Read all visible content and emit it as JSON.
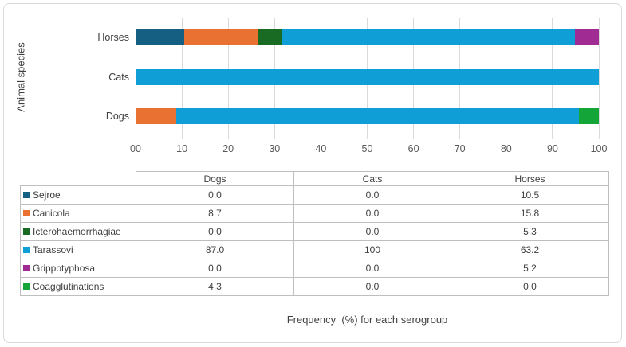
{
  "chart_data": {
    "type": "bar",
    "stacked": true,
    "orientation": "horizontal",
    "title": "",
    "xlabel": "Frequency  (%) for each serogroup",
    "ylabel": "Animal species",
    "xlim": [
      0,
      100
    ],
    "grid": true,
    "legend_position": "table-below",
    "categories": [
      "Dogs",
      "Cats",
      "Horses"
    ],
    "bar_categories_top_to_bottom": [
      "Horses",
      "Cats",
      "Dogs"
    ],
    "xticks": [
      "00",
      "10",
      "20",
      "30",
      "40",
      "50",
      "60",
      "70",
      "80",
      "90",
      "100"
    ],
    "series": [
      {
        "name": "Sejroe",
        "color": "#156082",
        "values": [
          0.0,
          0.0,
          10.5
        ]
      },
      {
        "name": "Canicola",
        "color": "#E97132",
        "values": [
          8.7,
          0.0,
          15.8
        ]
      },
      {
        "name": "Icterohaemorrhagiae",
        "color": "#196B24",
        "values": [
          0.0,
          0.0,
          5.3
        ]
      },
      {
        "name": "Tarassovi",
        "color": "#0F9ED5",
        "values": [
          87.0,
          100,
          63.2
        ]
      },
      {
        "name": "Grippotyphosa",
        "color": "#A02B93",
        "values": [
          0.0,
          0.0,
          5.2
        ]
      },
      {
        "name": "Coagglutinations",
        "color": "#13A538",
        "values": [
          4.3,
          0.0,
          0.0
        ]
      }
    ]
  },
  "table": {
    "columns": [
      "Dogs",
      "Cats",
      "Horses"
    ],
    "rows": [
      {
        "label": "Sejroe",
        "color": "#156082",
        "values": [
          "0.0",
          "0.0",
          "10.5"
        ]
      },
      {
        "label": "Canicola",
        "color": "#E97132",
        "values": [
          "8.7",
          "0.0",
          "15.8"
        ]
      },
      {
        "label": "Icterohaemorrhagiae",
        "color": "#196B24",
        "values": [
          "0.0",
          "0.0",
          "5.3"
        ]
      },
      {
        "label": "Tarassovi",
        "color": "#0F9ED5",
        "values": [
          "87.0",
          "100",
          "63.2"
        ]
      },
      {
        "label": "Grippotyphosa",
        "color": "#A02B93",
        "values": [
          "0.0",
          "0.0",
          "5.2"
        ]
      },
      {
        "label": "Coagglutinations",
        "color": "#13A538",
        "values": [
          "4.3",
          "0.0",
          "0.0"
        ]
      }
    ]
  },
  "style": {
    "gridline_color": "#d9d9d9",
    "table_border_color": "#bfbfbf",
    "text_color": "#404040",
    "tick_color": "#595959"
  }
}
